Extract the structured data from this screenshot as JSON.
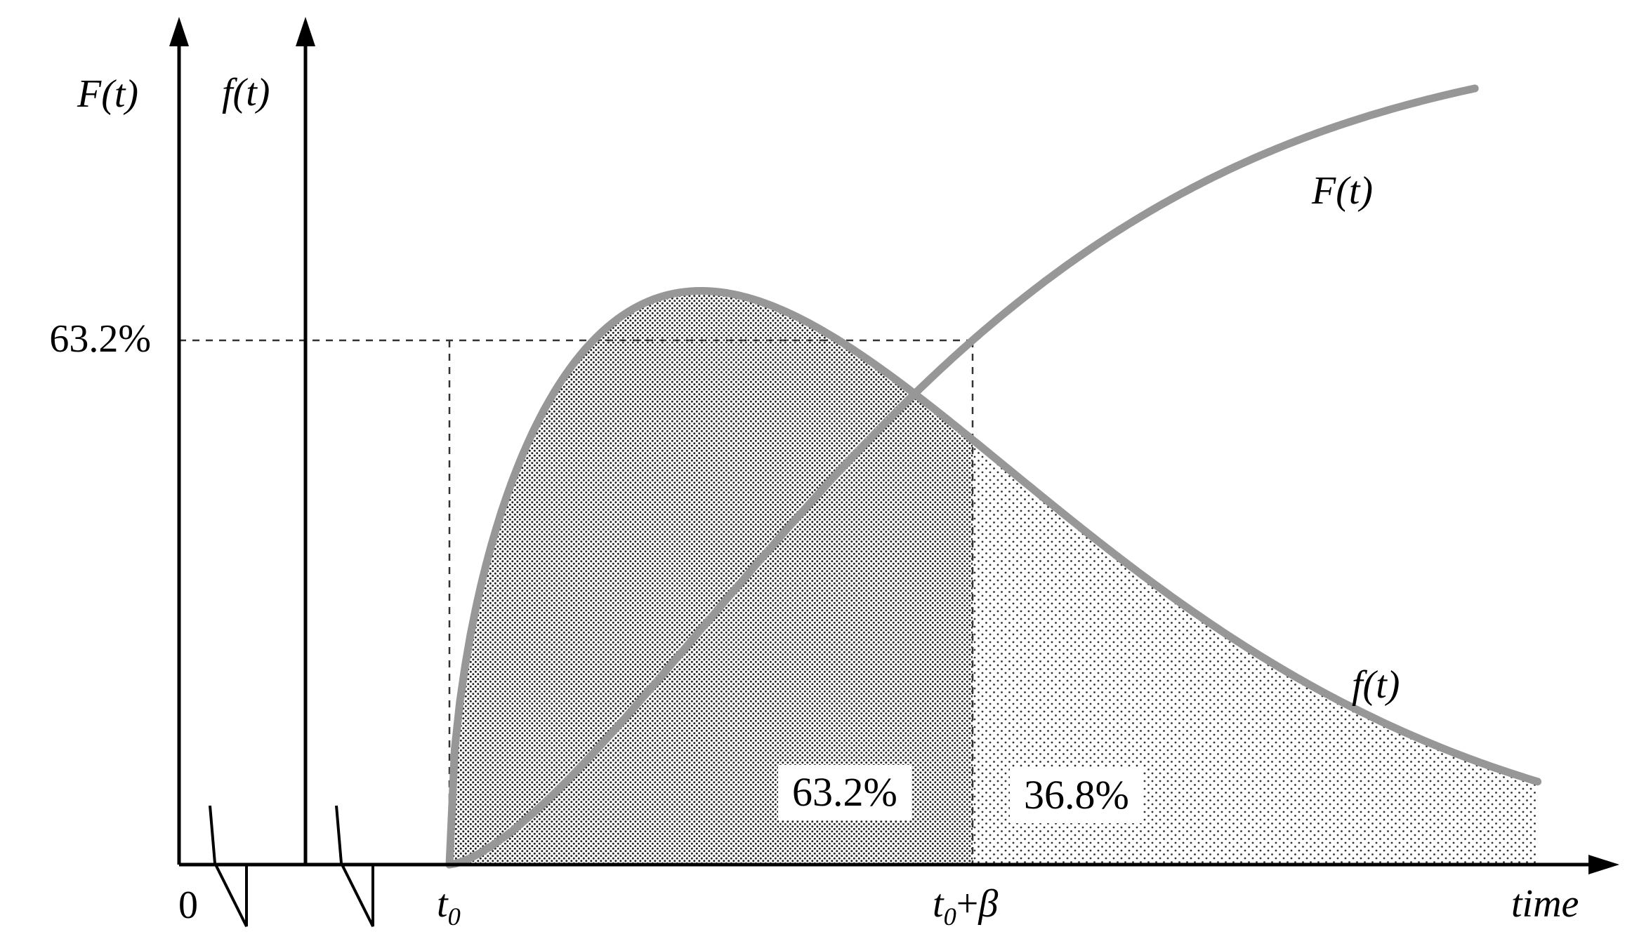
{
  "figure": {
    "y_axis_left_label": "F(t)",
    "y_axis_right_label": "f(t)",
    "level_tick_label": "63.2%",
    "origin_label": "0",
    "t0_label": {
      "base": "t",
      "sub": "0"
    },
    "t0_beta_label": {
      "base": "t",
      "sub": "0",
      "plus": "+",
      "beta": "β"
    },
    "time_label": "time",
    "F_curve_label": "F(t)",
    "f_curve_label": "f(t)",
    "area_left_label": "63.2%",
    "area_right_label": "36.8%"
  },
  "chart_data": {
    "type": "line",
    "title": "",
    "xlabel": "time",
    "x_ticks": [
      "0",
      "t0",
      "t0+β"
    ],
    "y_tick_labels": [
      "63.2%"
    ],
    "x_normalized_as": "(t - t0)/β",
    "f_values_normalized_as": "f(t)·β",
    "model": {
      "family": "weibull",
      "shape": 1.5,
      "scale": "β",
      "location": "t0"
    },
    "key_points": {
      "F_at_t0_plus_beta": 0.632,
      "area_left_of_t0_plus_beta": 0.632,
      "area_right_of_t0_plus_beta": 0.368
    },
    "u": [
      0,
      0.1,
      0.2,
      0.3,
      0.4,
      0.5,
      0.6,
      0.7,
      0.8,
      0.9,
      1.0,
      1.2,
      1.4,
      1.6,
      1.8,
      2.0
    ],
    "series": [
      {
        "name": "f(t)",
        "kind": "pdf",
        "values": [
          0,
          0.46,
          0.613,
          0.697,
          0.737,
          0.745,
          0.73,
          0.699,
          0.656,
          0.606,
          0.552,
          0.441,
          0.339,
          0.251,
          0.18,
          0.125
        ]
      },
      {
        "name": "F(t)",
        "kind": "cdf",
        "values": [
          0,
          0.031,
          0.086,
          0.152,
          0.224,
          0.298,
          0.372,
          0.443,
          0.511,
          0.574,
          0.632,
          0.731,
          0.809,
          0.868,
          0.911,
          0.941
        ]
      }
    ],
    "annotations": [
      {
        "text": "63.2%",
        "at": "dashed level line at F(t0+β)"
      },
      {
        "text": "63.2%",
        "at": "shaded area under f(t) between t0 and t0+β"
      },
      {
        "text": "36.8%",
        "at": "shaded area under f(t) right of t0+β"
      }
    ],
    "legend": "none",
    "grid": false
  }
}
